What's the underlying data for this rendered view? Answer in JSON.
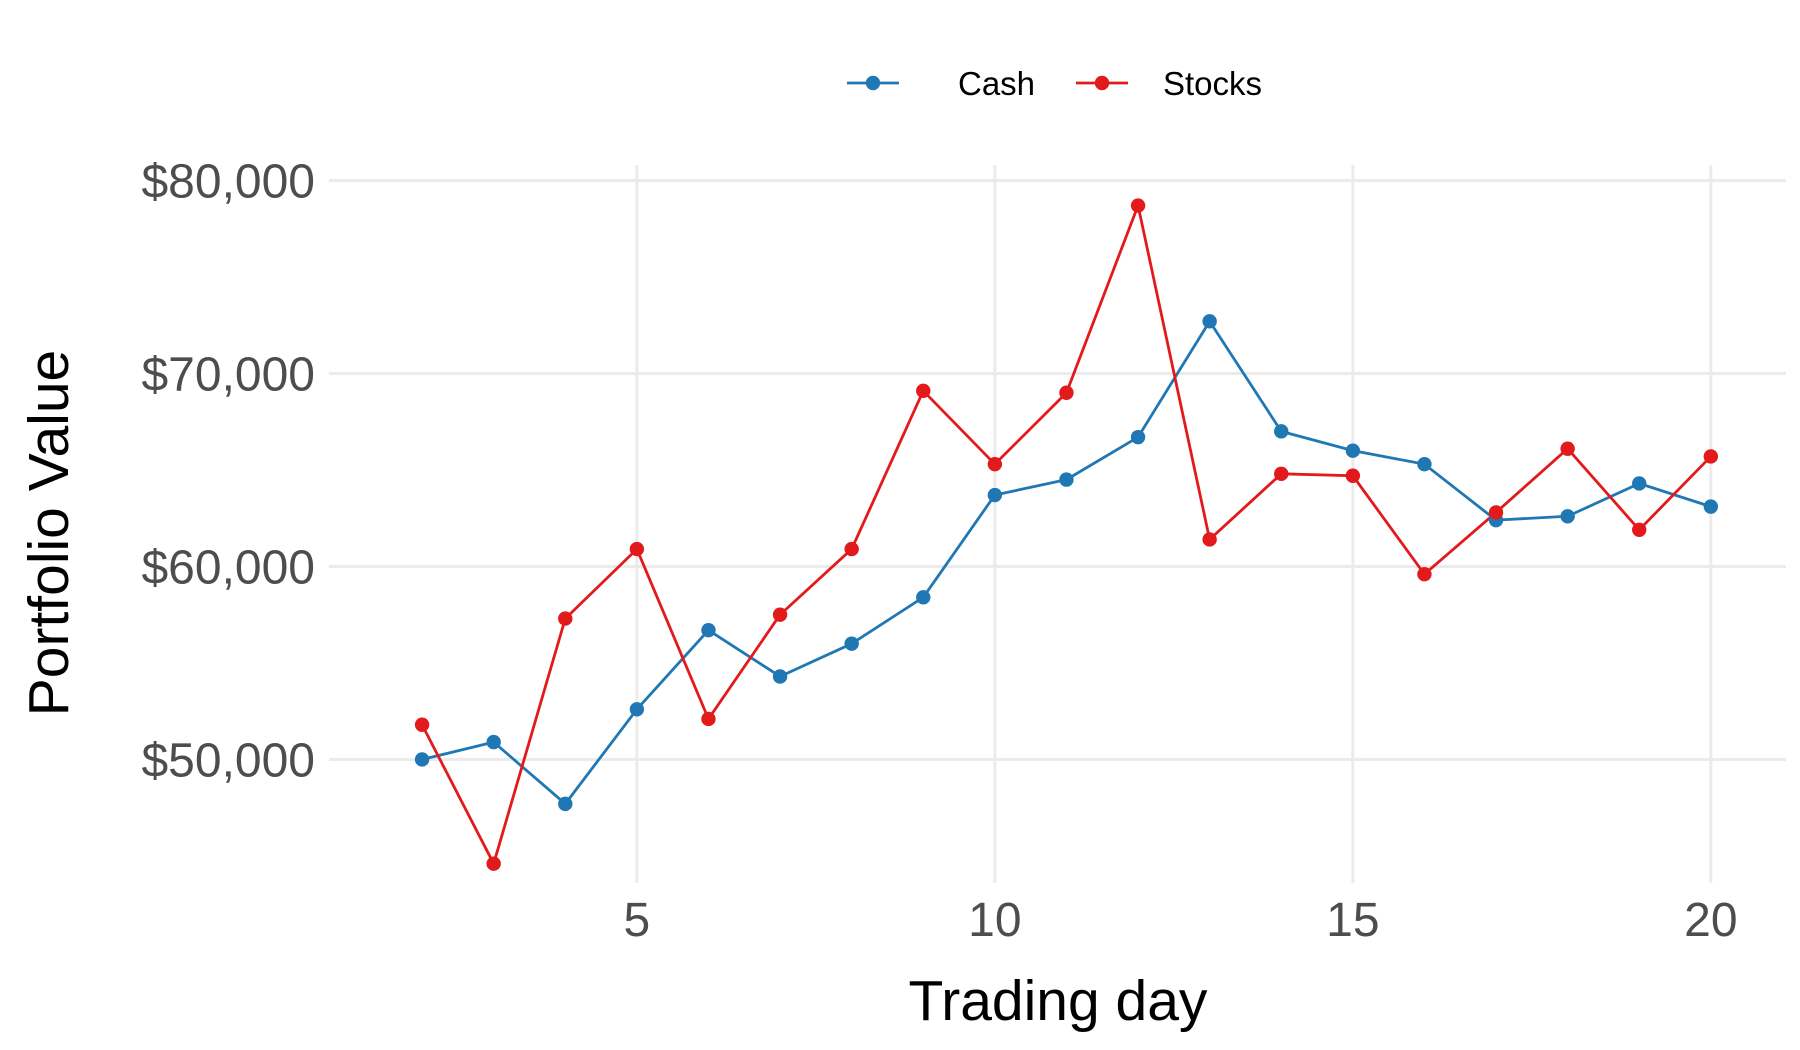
{
  "chart_data": {
    "type": "line",
    "title": "",
    "xlabel": "Trading day",
    "ylabel": "Portfolio Value",
    "x": [
      2,
      3,
      4,
      5,
      6,
      7,
      8,
      9,
      10,
      11,
      12,
      13,
      14,
      15,
      16,
      17,
      18,
      19,
      20
    ],
    "xlim": [
      0.7,
      21.05
    ],
    "ylim": [
      43600,
      80800
    ],
    "x_ticks": [
      5,
      10,
      15,
      20
    ],
    "x_tick_labels": [
      "5",
      "10",
      "15",
      "20"
    ],
    "y_ticks": [
      50000,
      60000,
      70000,
      80000
    ],
    "y_tick_labels": [
      "$50,000",
      "$60,000",
      "$70,000",
      "$80,000"
    ],
    "grid": true,
    "legend_position": "top",
    "series": [
      {
        "name": "Cash",
        "color": "#1f78b4",
        "values": [
          50000,
          50900,
          47700,
          52600,
          56700,
          54300,
          56000,
          58400,
          63700,
          64500,
          66700,
          72700,
          67000,
          66000,
          65300,
          62400,
          62600,
          64300,
          63100
        ]
      },
      {
        "name": "Stocks",
        "color": "#e31a1c",
        "values": [
          51800,
          44600,
          57300,
          60900,
          52100,
          57500,
          60900,
          69100,
          65300,
          69000,
          78700,
          61400,
          64800,
          64700,
          59600,
          62800,
          66100,
          61900,
          65700
        ]
      }
    ]
  }
}
